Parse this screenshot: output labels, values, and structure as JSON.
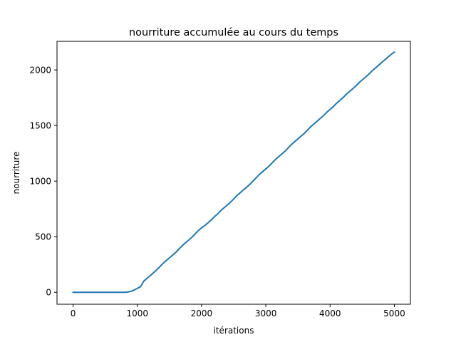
{
  "chart_data": {
    "type": "line",
    "title": "nourriture accumulée au cours du temps",
    "xlabel": "itérations",
    "ylabel": "nourriture",
    "xlim": [
      -250,
      5250
    ],
    "ylim": [
      -107.5,
      2257.5
    ],
    "xticks": [
      0,
      1000,
      2000,
      3000,
      4000,
      5000
    ],
    "yticks": [
      0,
      500,
      1000,
      1500,
      2000
    ],
    "xtick_labels": [
      "0",
      "1000",
      "2000",
      "3000",
      "4000",
      "5000"
    ],
    "ytick_labels": [
      "0",
      "500",
      "1000",
      "1500",
      "2000"
    ],
    "grid": false,
    "legend": "none",
    "series": [
      {
        "color": "#1f77b4",
        "x": [
          0,
          200,
          400,
          600,
          800,
          850,
          900,
          950,
          1000,
          1050,
          1100,
          1150,
          1200,
          1250,
          1300,
          1350,
          1400,
          1450,
          1500,
          1550,
          1600,
          1650,
          1700,
          1750,
          1800,
          1850,
          1900,
          1950,
          2000,
          2050,
          2100,
          2150,
          2200,
          2250,
          2300,
          2350,
          2400,
          2450,
          2500,
          2550,
          2600,
          2650,
          2700,
          2750,
          2800,
          2850,
          2900,
          2950,
          3000,
          3050,
          3100,
          3150,
          3200,
          3250,
          3300,
          3350,
          3400,
          3450,
          3500,
          3550,
          3600,
          3650,
          3700,
          3750,
          3800,
          3850,
          3900,
          3950,
          4000,
          4050,
          4100,
          4150,
          4200,
          4250,
          4300,
          4350,
          4400,
          4450,
          4500,
          4550,
          4600,
          4650,
          4700,
          4750,
          4800,
          4850,
          4900,
          4950,
          5000
        ],
        "y": [
          0,
          0,
          0,
          0,
          0,
          2,
          8,
          20,
          35,
          50,
          100,
          125,
          150,
          175,
          200,
          230,
          260,
          285,
          310,
          335,
          360,
          390,
          420,
          445,
          470,
          495,
          525,
          555,
          580,
          600,
          625,
          650,
          680,
          705,
          735,
          760,
          785,
          810,
          840,
          870,
          895,
          920,
          945,
          970,
          1000,
          1030,
          1060,
          1085,
          1110,
          1135,
          1165,
          1195,
          1220,
          1245,
          1270,
          1300,
          1330,
          1355,
          1380,
          1405,
          1430,
          1460,
          1490,
          1515,
          1540,
          1565,
          1590,
          1620,
          1645,
          1670,
          1700,
          1725,
          1750,
          1780,
          1805,
          1830,
          1855,
          1885,
          1910,
          1935,
          1960,
          1990,
          2015,
          2040,
          2065,
          2090,
          2115,
          2140,
          2160
        ]
      }
    ]
  }
}
